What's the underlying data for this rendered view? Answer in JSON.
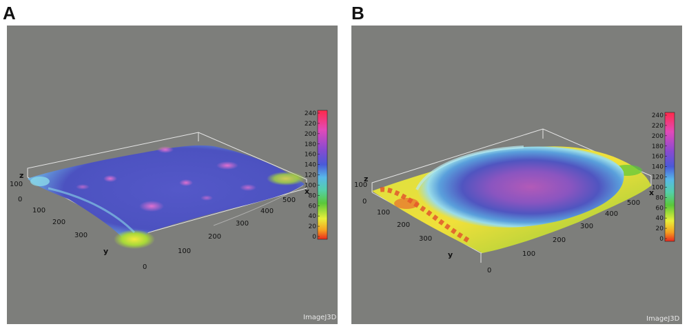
{
  "panels": [
    {
      "letter": "A",
      "watermark": "ImageJ3D",
      "axes": {
        "z_label": "z",
        "z_tick": "100",
        "origin": "0",
        "y_label": "y",
        "y_ticks": [
          "100",
          "200",
          "300"
        ],
        "x_label": "x",
        "x_ticks": [
          "0",
          "100",
          "200",
          "300",
          "400",
          "500"
        ]
      },
      "colorbar_ticks": [
        "240",
        "220",
        "200",
        "180",
        "160",
        "140",
        "120",
        "100",
        "80",
        "60",
        "40",
        "20",
        "0"
      ]
    },
    {
      "letter": "B",
      "watermark": "ImageJ3D",
      "axes": {
        "z_label": "z",
        "z_tick": "100",
        "origin": "0",
        "y_label": "y",
        "y_ticks": [
          "100",
          "200",
          "300"
        ],
        "x_label": "x",
        "x_ticks": [
          "0",
          "100",
          "200",
          "300",
          "400",
          "500"
        ]
      },
      "colorbar_ticks": [
        "240",
        "220",
        "200",
        "180",
        "160",
        "140",
        "120",
        "100",
        "80",
        "60",
        "40",
        "20",
        "0"
      ]
    }
  ],
  "colors": {
    "background": "#7d7e7b",
    "surface_blue": "#4a4fc0",
    "surface_magenta": "#c85ab8",
    "surface_cyan": "#6ad0e6",
    "surface_yellow": "#f0e84a",
    "surface_green": "#58c23a",
    "surface_red": "#e23a2a"
  }
}
